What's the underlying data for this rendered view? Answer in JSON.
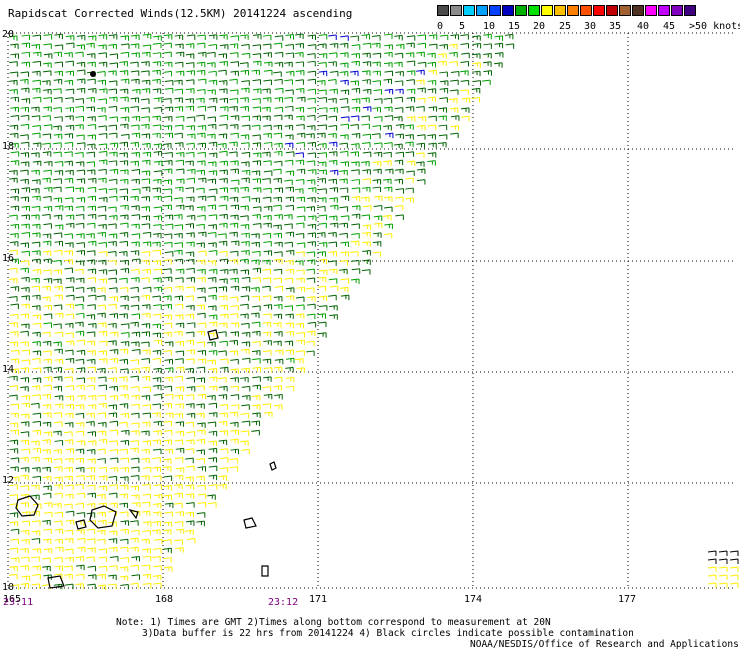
{
  "title": "Rapidscat Corrected Winds(12.5KM) 20141224 ascending",
  "colorbar": {
    "colors": [
      "#4a4a4a",
      "#8c8c8c",
      "#00cfff",
      "#00a0ff",
      "#0040ff",
      "#0000c0",
      "#00b000",
      "#00e000",
      "#ffff00",
      "#ffc000",
      "#ff8000",
      "#ff5000",
      "#ff0000",
      "#c00000",
      "#a06030",
      "#503020",
      "#ff00ff",
      "#c000ff",
      "#8000c0",
      "#400080"
    ],
    "labels": [
      "0",
      "5",
      "10",
      "15",
      "20",
      "25",
      "30",
      "35",
      "40",
      "45",
      ">50 knots"
    ]
  },
  "map": {
    "lon_ticks": [
      "165",
      "168",
      "171",
      "174",
      "177"
    ],
    "lat_ticks": [
      "20",
      "18",
      "16",
      "14",
      "12",
      "10"
    ],
    "lon_range": [
      165,
      179
    ],
    "lat_range": [
      10,
      20
    ]
  },
  "time_labels": [
    "23:11",
    "23:12"
  ],
  "notes": [
    "Note: 1) Times are GMT 2)Times along bottom correspond to measurement at 20N",
    "3)Data buffer is 22 hrs from 20141224 4) Black circles indicate possible contamination",
    "NOAA/NESDIS/Office of Research and Applications"
  ],
  "colors": {
    "green": "#00a000",
    "darkgreen": "#006400",
    "yellow": "#ffee00",
    "blue": "#0000d0"
  }
}
